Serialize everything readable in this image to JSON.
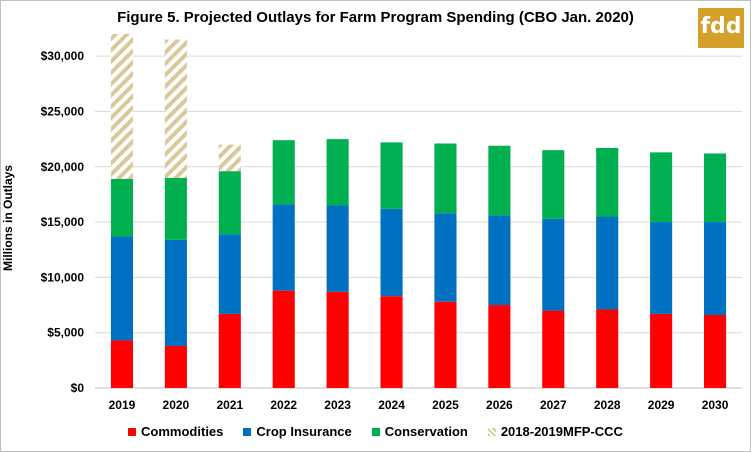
{
  "title": "Figure 5. Projected Outlays for Farm Program Spending (CBO Jan. 2020)",
  "logo": "fdd",
  "chart_data": {
    "type": "bar",
    "stacked": true,
    "categories": [
      "2019",
      "2020",
      "2021",
      "2022",
      "2023",
      "2024",
      "2025",
      "2026",
      "2027",
      "2028",
      "2029",
      "2030"
    ],
    "ylabel": "Millions in Outlays",
    "xlabel": "",
    "ylim": [
      0,
      32000
    ],
    "yticks": [
      0,
      5000,
      10000,
      15000,
      20000,
      25000,
      30000
    ],
    "ytick_labels": [
      "$0",
      "$5,000",
      "$10,000",
      "$15,000",
      "$20,000",
      "$25,000",
      "$30,000"
    ],
    "grid": true,
    "legend_position": "bottom",
    "series": [
      {
        "name": "Commodities",
        "color": "#ff0000",
        "values": [
          4300,
          3800,
          6700,
          8800,
          8700,
          8300,
          7800,
          7500,
          7000,
          7100,
          6700,
          6600
        ]
      },
      {
        "name": "Crop Insurance",
        "color": "#0070c0",
        "values": [
          9400,
          9600,
          7200,
          7800,
          7800,
          7900,
          8000,
          8100,
          8300,
          8400,
          8300,
          8400
        ]
      },
      {
        "name": "Conservation",
        "color": "#00b050",
        "values": [
          5200,
          5600,
          5700,
          5800,
          6000,
          6000,
          6300,
          6300,
          6200,
          6200,
          6300,
          6200
        ]
      },
      {
        "name": "2018-2019MFP-CCC",
        "color": "#d9c89a",
        "pattern": "hatched",
        "values": [
          13100,
          12500,
          2400,
          0,
          0,
          0,
          0,
          0,
          0,
          0,
          0,
          0
        ]
      }
    ]
  }
}
